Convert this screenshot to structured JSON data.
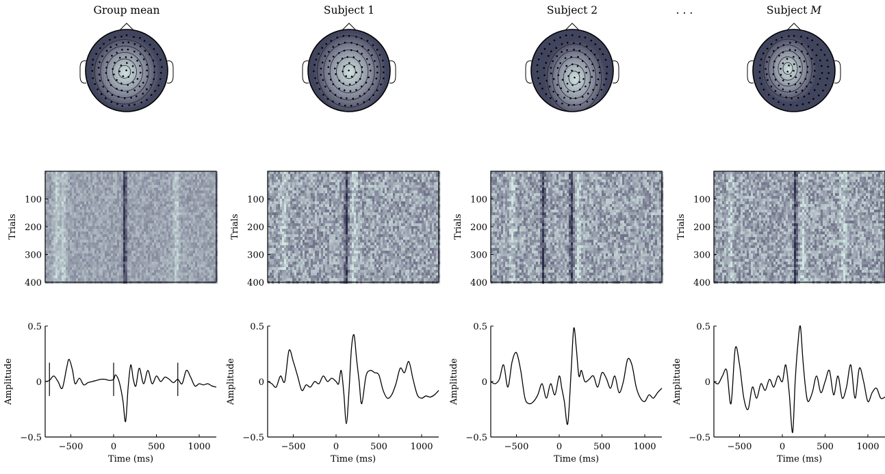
{
  "figure": {
    "ellipsis": ". . .",
    "colormap": {
      "low": "#2a2c48",
      "mid": "#8a8ea0",
      "high": "#d2e6e3"
    }
  },
  "columns": [
    {
      "title": "Group mean",
      "title_italic_suffix": "",
      "topomap": {
        "peak": [
          -0.05,
          0.03
        ],
        "spread": 0.55,
        "skew": 0.1
      }
    },
    {
      "title": "Subject 1",
      "title_italic_suffix": "",
      "topomap": {
        "peak": [
          0.0,
          0.02
        ],
        "spread": 0.6,
        "skew": 0.18
      }
    },
    {
      "title": "Subject 2",
      "title_italic_suffix": "",
      "topomap": {
        "peak": [
          0.05,
          0.18
        ],
        "spread": 0.55,
        "skew": 0.35
      }
    },
    {
      "title": "Subject ",
      "title_italic_suffix": "M",
      "topomap": {
        "peak": [
          -0.15,
          -0.05
        ],
        "spread": 0.48,
        "skew": 0.3
      }
    }
  ],
  "chart_data": [
    {
      "type": "heatmap",
      "panel": "Group mean",
      "ylabel": "Trials",
      "ylim": [
        0,
        400
      ],
      "yticks": [
        100,
        200,
        300,
        400
      ],
      "xlim": [
        -800,
        1200
      ],
      "dark_bands_ms": [
        120
      ],
      "light_bands_ms": [
        -680,
        -600,
        720
      ],
      "noise": 0.25
    },
    {
      "type": "heatmap",
      "panel": "Subject 1",
      "ylabel": "Trials",
      "ylim": [
        0,
        400
      ],
      "yticks": [
        100,
        200,
        300,
        400
      ],
      "xlim": [
        -800,
        1200
      ],
      "dark_bands_ms": [
        110
      ],
      "light_bands_ms": [
        -620,
        200
      ],
      "noise": 0.45
    },
    {
      "type": "heatmap",
      "panel": "Subject 2",
      "ylabel": "Trials",
      "ylim": [
        0,
        400
      ],
      "yticks": [
        100,
        200,
        300,
        400
      ],
      "xlim": [
        -800,
        1200
      ],
      "dark_bands_ms": [
        130,
        -200
      ],
      "light_bands_ms": [
        -560,
        210
      ],
      "noise": 0.45
    },
    {
      "type": "heatmap",
      "panel": "Subject M",
      "ylabel": "Trials",
      "ylim": [
        0,
        400
      ],
      "yticks": [
        100,
        200,
        300,
        400
      ],
      "xlim": [
        -800,
        1200
      ],
      "dark_bands_ms": [
        140
      ],
      "light_bands_ms": [
        -620,
        230,
        700
      ],
      "noise": 0.45
    },
    {
      "type": "line",
      "panel": "Group mean",
      "xlabel": "Time (ms)",
      "ylabel": "Amplitude",
      "xlim": [
        -800,
        1200
      ],
      "ylim": [
        -0.5,
        0.5
      ],
      "xticks": [
        -500,
        0,
        500,
        1000
      ],
      "yticks": [
        -0.5,
        0,
        0.5
      ],
      "markers_ms": [
        -750,
        0,
        750
      ],
      "x": [
        -800,
        -750,
        -700,
        -650,
        -600,
        -550,
        -520,
        -480,
        -450,
        -400,
        -350,
        -300,
        -250,
        -200,
        -150,
        -100,
        -50,
        0,
        20,
        50,
        80,
        110,
        140,
        170,
        200,
        230,
        260,
        300,
        350,
        400,
        450,
        500,
        550,
        600,
        650,
        700,
        750,
        800,
        850,
        900,
        950,
        1000,
        1050,
        1100,
        1150,
        1200
      ],
      "y": [
        0.0,
        0.01,
        0.05,
        0.0,
        -0.06,
        0.12,
        0.2,
        0.1,
        -0.02,
        0.03,
        -0.03,
        -0.01,
        0.0,
        0.01,
        0.02,
        0.02,
        0.01,
        0.02,
        0.06,
        0.03,
        -0.05,
        -0.18,
        -0.36,
        -0.05,
        0.15,
        0.02,
        -0.04,
        0.12,
        -0.02,
        0.1,
        -0.02,
        0.05,
        0.0,
        0.04,
        0.02,
        -0.01,
        0.02,
        -0.02,
        0.1,
        0.04,
        -0.04,
        -0.02,
        -0.03,
        -0.02,
        -0.04,
        -0.05
      ]
    },
    {
      "type": "line",
      "panel": "Subject 1",
      "xlabel": "Time (ms)",
      "ylabel": "Amplitude",
      "xlim": [
        -800,
        1200
      ],
      "ylim": [
        -0.5,
        0.5
      ],
      "xticks": [
        -500,
        0,
        500,
        1000
      ],
      "yticks": [
        -0.5,
        0,
        0.5
      ],
      "markers_ms": [],
      "x": [
        -800,
        -750,
        -700,
        -650,
        -600,
        -550,
        -500,
        -450,
        -400,
        -350,
        -300,
        -250,
        -200,
        -150,
        -100,
        -50,
        0,
        30,
        60,
        90,
        120,
        150,
        180,
        210,
        240,
        270,
        300,
        350,
        400,
        450,
        500,
        550,
        600,
        650,
        700,
        750,
        800,
        850,
        900,
        950,
        1000,
        1050,
        1100,
        1150,
        1200
      ],
      "y": [
        0.0,
        -0.02,
        -0.05,
        0.05,
        0.0,
        0.28,
        0.18,
        0.05,
        -0.08,
        -0.03,
        -0.05,
        0.0,
        -0.02,
        0.05,
        0.0,
        0.03,
        0.0,
        -0.02,
        0.1,
        -0.1,
        -0.38,
        -0.1,
        0.3,
        0.42,
        0.2,
        0.0,
        -0.2,
        0.05,
        0.1,
        0.08,
        0.06,
        -0.08,
        -0.15,
        -0.12,
        -0.02,
        0.12,
        0.08,
        0.18,
        0.02,
        -0.12,
        -0.15,
        -0.13,
        -0.14,
        -0.12,
        -0.08
      ]
    },
    {
      "type": "line",
      "panel": "Subject 2",
      "xlabel": "Time (ms)",
      "ylabel": "Amplitude",
      "xlim": [
        -800,
        1200
      ],
      "ylim": [
        -0.5,
        0.5
      ],
      "xticks": [
        -500,
        0,
        500,
        1000
      ],
      "yticks": [
        -0.5,
        0,
        0.5
      ],
      "markers_ms": [],
      "x": [
        -800,
        -750,
        -700,
        -650,
        -600,
        -550,
        -500,
        -450,
        -400,
        -350,
        -300,
        -250,
        -200,
        -150,
        -100,
        -50,
        0,
        30,
        60,
        100,
        140,
        170,
        200,
        230,
        260,
        300,
        350,
        400,
        450,
        500,
        550,
        600,
        650,
        700,
        750,
        800,
        850,
        900,
        950,
        1000,
        1050,
        1100,
        1150,
        1200
      ],
      "y": [
        0.0,
        -0.02,
        0.02,
        0.15,
        -0.05,
        0.18,
        0.26,
        0.1,
        -0.15,
        -0.2,
        -0.18,
        -0.12,
        -0.02,
        -0.15,
        -0.02,
        -0.12,
        0.05,
        -0.06,
        -0.18,
        -0.38,
        0.1,
        0.48,
        0.3,
        0.05,
        0.1,
        0.0,
        0.02,
        0.05,
        -0.05,
        0.08,
        0.03,
        -0.06,
        0.05,
        -0.1,
        0.0,
        0.2,
        0.15,
        -0.05,
        -0.15,
        -0.18,
        -0.12,
        -0.15,
        -0.1,
        -0.06
      ]
    },
    {
      "type": "line",
      "panel": "Subject M",
      "xlabel": "Time (ms)",
      "ylabel": "Amplitude",
      "xlim": [
        -800,
        1200
      ],
      "ylim": [
        -0.5,
        0.5
      ],
      "xticks": [
        -500,
        0,
        500,
        1000
      ],
      "yticks": [
        -0.5,
        0,
        0.5
      ],
      "markers_ms": [],
      "x": [
        -800,
        -750,
        -700,
        -650,
        -600,
        -550,
        -500,
        -450,
        -400,
        -350,
        -300,
        -250,
        -200,
        -150,
        -100,
        -50,
        0,
        40,
        80,
        120,
        150,
        180,
        210,
        240,
        270,
        300,
        350,
        400,
        450,
        500,
        550,
        600,
        650,
        700,
        750,
        800,
        850,
        900,
        950,
        1000,
        1050,
        1100,
        1150,
        1200
      ],
      "y": [
        0.0,
        -0.02,
        0.05,
        0.1,
        -0.2,
        0.3,
        0.15,
        -0.15,
        -0.25,
        -0.05,
        -0.15,
        -0.02,
        -0.08,
        0.02,
        -0.05,
        0.05,
        0.0,
        0.15,
        -0.1,
        -0.46,
        0.0,
        0.32,
        0.5,
        0.2,
        -0.05,
        -0.18,
        -0.1,
        0.05,
        -0.1,
        0.0,
        0.1,
        -0.12,
        0.05,
        -0.15,
        -0.05,
        0.15,
        -0.15,
        0.12,
        0.0,
        -0.18,
        -0.1,
        -0.06,
        -0.15,
        -0.14
      ]
    }
  ]
}
